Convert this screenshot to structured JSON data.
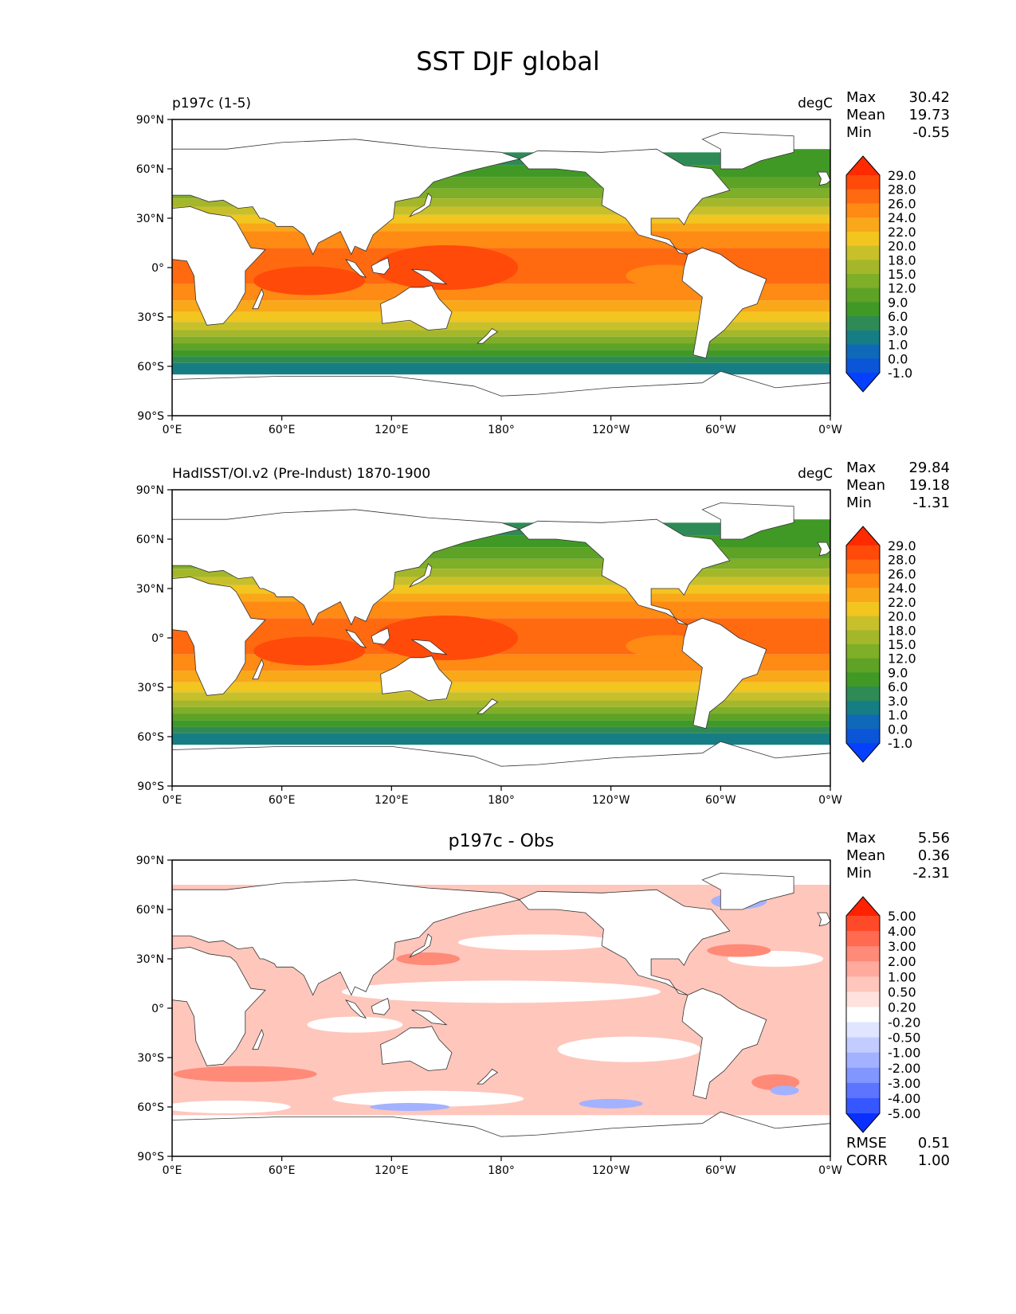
{
  "title": "SST DJF global",
  "x_ticks": [
    "0°E",
    "60°E",
    "120°E",
    "180°",
    "120°W",
    "60°W",
    "0°W"
  ],
  "y_ticks": [
    "90°N",
    "60°N",
    "30°N",
    "0°",
    "30°S",
    "60°S",
    "90°S"
  ],
  "panels": [
    {
      "id": "model",
      "title_left": "p197c (1-5)",
      "title_right": "degC",
      "title_center": "",
      "stats": [
        {
          "label": "Max",
          "value": "30.42"
        },
        {
          "label": "Mean",
          "value": "19.73"
        },
        {
          "label": "Min",
          "value": "-0.55"
        }
      ],
      "colorbar": {
        "labels": [
          "29.0",
          "28.0",
          "26.0",
          "24.0",
          "22.0",
          "20.0",
          "18.0",
          "15.0",
          "12.0",
          "9.0",
          "6.0",
          "3.0",
          "1.0",
          "0.0",
          "-1.0"
        ],
        "colors": [
          "#ff2a00",
          "#ff4a0a",
          "#ff6a10",
          "#ff8a14",
          "#f9a81a",
          "#f3c51f",
          "#c8c02a",
          "#a4b72b",
          "#7fae28",
          "#5ea226",
          "#419925",
          "#2f8b55",
          "#177d85",
          "#1068b8",
          "#0a55d8",
          "#0640ff"
        ]
      },
      "footer_stats": []
    },
    {
      "id": "obs",
      "title_left": "HadISST/OI.v2 (Pre-Indust) 1870-1900",
      "title_right": "degC",
      "title_center": "",
      "stats": [
        {
          "label": "Max",
          "value": "29.84"
        },
        {
          "label": "Mean",
          "value": "19.18"
        },
        {
          "label": "Min",
          "value": "-1.31"
        }
      ],
      "colorbar": {
        "labels": [
          "29.0",
          "28.0",
          "26.0",
          "24.0",
          "22.0",
          "20.0",
          "18.0",
          "15.0",
          "12.0",
          "9.0",
          "6.0",
          "3.0",
          "1.0",
          "0.0",
          "-1.0"
        ],
        "colors": [
          "#ff2a00",
          "#ff4a0a",
          "#ff6a10",
          "#ff8a14",
          "#f9a81a",
          "#f3c51f",
          "#c8c02a",
          "#a4b72b",
          "#7fae28",
          "#5ea226",
          "#419925",
          "#2f8b55",
          "#177d85",
          "#1068b8",
          "#0a55d8",
          "#0640ff"
        ]
      },
      "footer_stats": []
    },
    {
      "id": "diff",
      "title_left": "",
      "title_right": "",
      "title_center": "p197c - Obs",
      "stats": [
        {
          "label": "Max",
          "value": "5.56"
        },
        {
          "label": "Mean",
          "value": "0.36"
        },
        {
          "label": "Min",
          "value": "-2.31"
        }
      ],
      "colorbar": {
        "labels": [
          "5.00",
          "4.00",
          "3.00",
          "2.00",
          "1.00",
          "0.50",
          "0.20",
          "-0.20",
          "-0.50",
          "-1.00",
          "-2.00",
          "-3.00",
          "-4.00",
          "-5.00"
        ],
        "colors": [
          "#ff2200",
          "#ff4a2a",
          "#ff6a50",
          "#ff8a78",
          "#ffaa9c",
          "#ffc6bc",
          "#ffe2dc",
          "#ffffff",
          "#e0e6ff",
          "#c2ccff",
          "#a2b2ff",
          "#8296ff",
          "#5c74ff",
          "#3656ff",
          "#0a30ff"
        ]
      },
      "footer_stats": [
        {
          "label": "RMSE",
          "value": "0.51"
        },
        {
          "label": "CORR",
          "value": "1.00"
        }
      ]
    }
  ]
}
